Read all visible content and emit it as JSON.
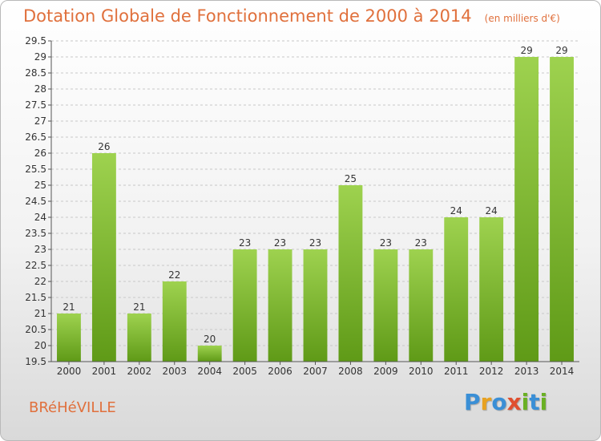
{
  "header": {
    "title": "Dotation Globale de Fonctionnement de 2000 à 2014",
    "unit": "(en milliers d'€)"
  },
  "commune": "BRéHéVILLE",
  "logo": {
    "letters": [
      "P",
      "r",
      "o",
      "x",
      "i",
      "t",
      "i"
    ],
    "colors": [
      "#3a8fd6",
      "#e8a221",
      "#3a8fd6",
      "#e04f2f",
      "#6ab023",
      "#3a8fd6",
      "#6ab023"
    ]
  },
  "colors": {
    "bar_top": "#9ed24f",
    "bar_bottom": "#5f9a17",
    "grid": "#c8c8c8"
  },
  "chart_data": {
    "type": "bar",
    "title": "Dotation Globale de Fonctionnement de 2000 à 2014",
    "categories": [
      "2000",
      "2001",
      "2002",
      "2003",
      "2004",
      "2005",
      "2006",
      "2007",
      "2008",
      "2009",
      "2010",
      "2011",
      "2012",
      "2013",
      "2014"
    ],
    "values": [
      21,
      26,
      21,
      22,
      20,
      23,
      23,
      23,
      25,
      23,
      23,
      24,
      24,
      29,
      29
    ],
    "ylim": [
      19.5,
      29.5
    ],
    "yticks": [
      "19.5",
      "20",
      "20.5",
      "21",
      "21.5",
      "22",
      "22.5",
      "23",
      "23.5",
      "24",
      "24.5",
      "25",
      "25.5",
      "26",
      "26.5",
      "27",
      "27.5",
      "28",
      "28.5",
      "29",
      "29.5"
    ],
    "grid": true
  }
}
